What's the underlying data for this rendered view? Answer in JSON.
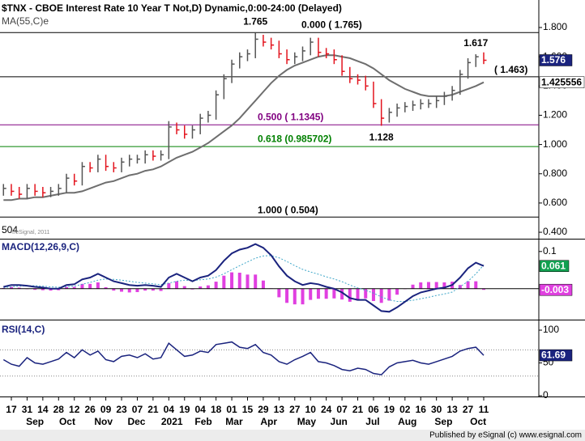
{
  "chart_data": [
    {
      "type": "ohlc",
      "title": "$TNX - CBOE Interest Rate 10 Year T Not,D) Dynamic,0:00-24:00 (Delayed)",
      "ylim": [
        0.356,
        1.988
      ],
      "yticks": [
        {
          "value": 1.8,
          "label": "1.800"
        },
        {
          "value": 1.6,
          "label": "1.600"
        },
        {
          "value": 1.4,
          "label": "1.400"
        },
        {
          "value": 1.2,
          "label": "1.200"
        },
        {
          "value": 1.0,
          "label": "1.000"
        },
        {
          "value": 0.8,
          "label": "0.800"
        },
        {
          "value": 0.6,
          "label": "0.600"
        },
        {
          "value": 0.4,
          "label": "0.400"
        }
      ],
      "up_color": "#555555",
      "down_color": "#e3141e",
      "high": [
        0.73,
        0.73,
        0.71,
        0.73,
        0.73,
        0.71,
        0.71,
        0.73,
        0.8,
        0.8,
        0.88,
        0.88,
        0.93,
        0.93,
        0.88,
        0.91,
        0.93,
        0.93,
        0.96,
        0.96,
        0.96,
        1.16,
        1.15,
        1.13,
        1.13,
        1.21,
        1.23,
        1.37,
        1.48,
        1.58,
        1.63,
        1.65,
        1.765,
        1.75,
        1.73,
        1.71,
        1.65,
        1.63,
        1.67,
        1.73,
        1.73,
        1.66,
        1.65,
        1.61,
        1.53,
        1.48,
        1.47,
        1.43,
        1.31,
        1.25,
        1.28,
        1.29,
        1.3,
        1.31,
        1.31,
        1.33,
        1.36,
        1.4,
        1.51,
        1.59,
        1.617,
        1.63
      ],
      "low": [
        0.65,
        0.65,
        0.63,
        0.63,
        0.65,
        0.64,
        0.64,
        0.65,
        0.67,
        0.72,
        0.72,
        0.81,
        0.81,
        0.82,
        0.81,
        0.81,
        0.85,
        0.87,
        0.87,
        0.89,
        0.89,
        0.9,
        1.07,
        1.04,
        1.04,
        1.07,
        1.15,
        1.17,
        1.31,
        1.42,
        1.52,
        1.57,
        1.59,
        1.67,
        1.65,
        1.59,
        1.55,
        1.55,
        1.57,
        1.61,
        1.6,
        1.59,
        1.55,
        1.47,
        1.42,
        1.41,
        1.37,
        1.25,
        1.128,
        1.15,
        1.19,
        1.22,
        1.23,
        1.24,
        1.25,
        1.25,
        1.27,
        1.3,
        1.34,
        1.45,
        1.53,
        1.55
      ],
      "close": [
        0.7,
        0.68,
        0.66,
        0.7,
        0.68,
        0.67,
        0.68,
        0.7,
        0.77,
        0.75,
        0.85,
        0.84,
        0.9,
        0.85,
        0.84,
        0.88,
        0.9,
        0.9,
        0.93,
        0.92,
        0.93,
        1.12,
        1.1,
        1.07,
        1.1,
        1.18,
        1.2,
        1.34,
        1.45,
        1.55,
        1.6,
        1.62,
        1.72,
        1.7,
        1.68,
        1.62,
        1.58,
        1.6,
        1.64,
        1.7,
        1.63,
        1.62,
        1.58,
        1.5,
        1.45,
        1.44,
        1.4,
        1.28,
        1.18,
        1.22,
        1.25,
        1.26,
        1.27,
        1.28,
        1.28,
        1.3,
        1.33,
        1.37,
        1.48,
        1.56,
        1.6,
        1.576
      ],
      "ma": {
        "name": "MA(55,C)e",
        "color": "#6e6e6e",
        "values": [
          0.62,
          0.62,
          0.63,
          0.63,
          0.64,
          0.64,
          0.65,
          0.66,
          0.67,
          0.67,
          0.68,
          0.7,
          0.72,
          0.74,
          0.75,
          0.77,
          0.79,
          0.8,
          0.82,
          0.83,
          0.85,
          0.88,
          0.91,
          0.93,
          0.95,
          0.98,
          1.01,
          1.05,
          1.09,
          1.13,
          1.18,
          1.24,
          1.3,
          1.36,
          1.42,
          1.47,
          1.51,
          1.54,
          1.56,
          1.58,
          1.6,
          1.61,
          1.61,
          1.6,
          1.59,
          1.57,
          1.55,
          1.52,
          1.48,
          1.44,
          1.41,
          1.38,
          1.36,
          1.34,
          1.33,
          1.33,
          1.33,
          1.34,
          1.36,
          1.38,
          1.4,
          1.425556
        ]
      },
      "levels": [
        {
          "label": "0.000 ( 1.765)",
          "value": 1.765,
          "color": "#000000"
        },
        {
          "label": "( 1.463)",
          "value": 1.463,
          "color": "#000000"
        },
        {
          "label": "0.500 ( 1.1345)",
          "value": 1.1345,
          "color": "#800080"
        },
        {
          "label": "0.618 (0.985702)",
          "value": 0.985702,
          "color": "#008000"
        },
        {
          "label": "1.000 ( 0.504)",
          "value": 0.504,
          "color": "#000000"
        }
      ],
      "peaks": [
        {
          "x": 32,
          "value": 1.765
        },
        {
          "x": 60,
          "value": 1.617
        },
        {
          "x": 48,
          "value": 1.128
        }
      ],
      "clipped_label": "504",
      "watermark": "©eSignal, 2011"
    },
    {
      "type": "macd",
      "title": "MACD(12,26,9,C)",
      "ylim": [
        -0.083,
        0.13
      ],
      "yticks": [
        0.1
      ],
      "macd": {
        "color": "#1a237e",
        "values": [
          0.005,
          0.01,
          0.01,
          0.008,
          0.005,
          0.003,
          0,
          0,
          0.01,
          0.012,
          0.025,
          0.03,
          0.04,
          0.03,
          0.02,
          0.015,
          0.01,
          0.008,
          0.01,
          0.008,
          0.005,
          0.03,
          0.04,
          0.03,
          0.02,
          0.03,
          0.035,
          0.05,
          0.075,
          0.095,
          0.105,
          0.11,
          0.12,
          0.11,
          0.09,
          0.06,
          0.035,
          0.02,
          0.01,
          0.015,
          0.012,
          0.005,
          0,
          -0.01,
          -0.025,
          -0.03,
          -0.03,
          -0.045,
          -0.06,
          -0.062,
          -0.05,
          -0.035,
          -0.02,
          -0.01,
          -0.005,
          0,
          0.003,
          0.01,
          0.03,
          0.055,
          0.07,
          0.061
        ]
      },
      "signal": {
        "color": "#3fa7c9",
        "values": [
          0.003,
          0.005,
          0.007,
          0.008,
          0.008,
          0.007,
          0.005,
          0.004,
          0.005,
          0.007,
          0.012,
          0.017,
          0.023,
          0.026,
          0.025,
          0.023,
          0.02,
          0.017,
          0.015,
          0.013,
          0.011,
          0.015,
          0.02,
          0.023,
          0.022,
          0.024,
          0.026,
          0.031,
          0.04,
          0.051,
          0.062,
          0.072,
          0.082,
          0.088,
          0.089,
          0.083,
          0.073,
          0.062,
          0.052,
          0.045,
          0.039,
          0.032,
          0.026,
          0.019,
          0.01,
          0.002,
          -0.004,
          -0.012,
          -0.022,
          -0.03,
          -0.034,
          -0.034,
          -0.031,
          -0.027,
          -0.023,
          -0.018,
          -0.014,
          -0.009,
          0.005,
          0.02,
          0.04,
          0.064
        ]
      },
      "histogram": {
        "color": "#e040e0",
        "values": [
          0.002,
          0.005,
          0.003,
          0,
          -0.003,
          -0.004,
          -0.005,
          -0.004,
          0.005,
          0.005,
          0.013,
          0.013,
          0.017,
          0.004,
          -0.005,
          -0.008,
          -0.01,
          -0.009,
          -0.005,
          -0.005,
          -0.006,
          0.015,
          0.02,
          0.007,
          -0.002,
          0.006,
          0.009,
          0.019,
          0.035,
          0.044,
          0.043,
          0.038,
          0.038,
          0.022,
          0.001,
          -0.023,
          -0.038,
          -0.042,
          -0.042,
          -0.03,
          -0.027,
          -0.027,
          -0.026,
          -0.029,
          -0.035,
          -0.032,
          -0.026,
          -0.033,
          -0.038,
          -0.032,
          -0.016,
          -0.001,
          0.011,
          0.017,
          0.018,
          0.018,
          0.017,
          0.019,
          0.01,
          0.02,
          0.02,
          -0.003
        ]
      }
    },
    {
      "type": "rsi",
      "title": "RSI(14,C)",
      "ylim": [
        -1.2,
        113.6
      ],
      "yticks": [
        100,
        50,
        0
      ],
      "levels": [
        70,
        30
      ],
      "color": "#1a237e",
      "values": [
        55,
        48,
        45,
        58,
        50,
        48,
        52,
        56,
        66,
        58,
        70,
        62,
        68,
        55,
        52,
        60,
        62,
        58,
        64,
        56,
        58,
        80,
        70,
        60,
        62,
        68,
        66,
        78,
        80,
        82,
        74,
        72,
        78,
        66,
        62,
        52,
        48,
        55,
        60,
        66,
        52,
        50,
        46,
        40,
        38,
        42,
        40,
        34,
        32,
        44,
        50,
        52,
        54,
        50,
        48,
        52,
        56,
        60,
        68,
        72,
        74,
        61.69
      ]
    }
  ],
  "x_axis": {
    "xlim": [
      -0.44,
      68.0
    ],
    "xticks": [
      {
        "value": 1,
        "label": "17"
      },
      {
        "value": 3,
        "label": "31"
      },
      {
        "value": 5,
        "label": "14"
      },
      {
        "value": 7,
        "label": "28"
      },
      {
        "value": 9,
        "label": "12"
      },
      {
        "value": 11,
        "label": "26"
      },
      {
        "value": 13,
        "label": "09"
      },
      {
        "value": 15,
        "label": "23"
      },
      {
        "value": 17,
        "label": "07"
      },
      {
        "value": 19,
        "label": "21"
      },
      {
        "value": 21,
        "label": "04"
      },
      {
        "value": 23,
        "label": "19"
      },
      {
        "value": 25,
        "label": "04"
      },
      {
        "value": 27,
        "label": "18"
      },
      {
        "value": 29,
        "label": "01"
      },
      {
        "value": 31,
        "label": "15"
      },
      {
        "value": 33,
        "label": "29"
      },
      {
        "value": 35,
        "label": "13"
      },
      {
        "value": 37,
        "label": "27"
      },
      {
        "value": 39,
        "label": "10"
      },
      {
        "value": 41,
        "label": "24"
      },
      {
        "value": 43,
        "label": "07"
      },
      {
        "value": 45,
        "label": "21"
      },
      {
        "value": 47,
        "label": "06"
      },
      {
        "value": 49,
        "label": "19"
      },
      {
        "value": 51,
        "label": "02"
      },
      {
        "value": 53,
        "label": "16"
      },
      {
        "value": 55,
        "label": "30"
      },
      {
        "value": 57,
        "label": "13"
      },
      {
        "value": 59,
        "label": "27"
      },
      {
        "value": 61,
        "label": "11"
      }
    ],
    "months": [
      {
        "value": 4,
        "label": "Sep"
      },
      {
        "value": 8.1,
        "label": "Oct"
      },
      {
        "value": 12.7,
        "label": "Nov"
      },
      {
        "value": 16.9,
        "label": "Dec"
      },
      {
        "value": 21.4,
        "label": "2021"
      },
      {
        "value": 25.4,
        "label": "Feb"
      },
      {
        "value": 29.3,
        "label": "Mar"
      },
      {
        "value": 33.7,
        "label": "Apr"
      },
      {
        "value": 38.5,
        "label": "May"
      },
      {
        "value": 42.6,
        "label": "Jun"
      },
      {
        "value": 46.9,
        "label": "Jul"
      },
      {
        "value": 51.3,
        "label": "Aug"
      },
      {
        "value": 55.9,
        "label": "Sep"
      },
      {
        "value": 60.3,
        "label": "Oct"
      }
    ]
  },
  "footer": "Published by eSignal (c) www.esignal.com"
}
